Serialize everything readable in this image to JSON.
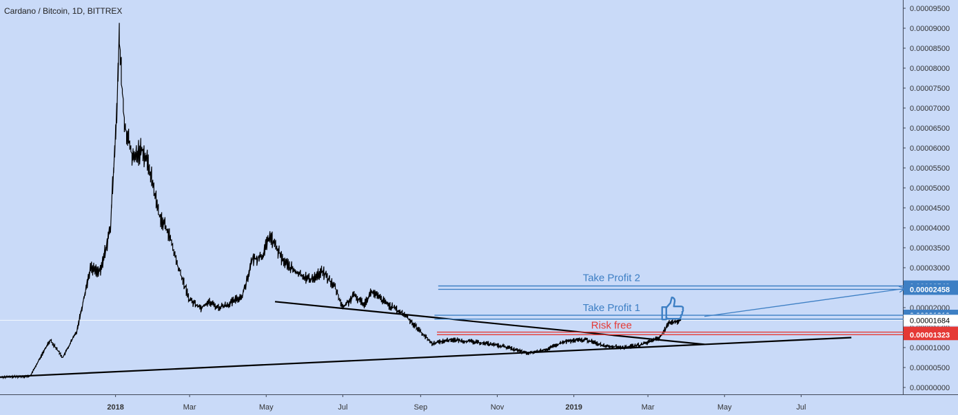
{
  "header": {
    "title": "Cardano / Bitcoin, 1D, BITTREX"
  },
  "chart_data": {
    "type": "candlestick",
    "symbol": "Cardano / Bitcoin",
    "interval": "1D",
    "exchange": "BITTREX",
    "x_ticks": [
      "2018",
      "Mar",
      "May",
      "Jul",
      "Sep",
      "Nov",
      "2019",
      "Mar",
      "May",
      "Jul"
    ],
    "y_ticks": [
      "0.00009500",
      "0.00009000",
      "0.00008500",
      "0.00008000",
      "0.00007500",
      "0.00007000",
      "0.00006500",
      "0.00006000",
      "0.00005500",
      "0.00005000",
      "0.00004500",
      "0.00004000",
      "0.00003500",
      "0.00003000",
      "0.00002500",
      "0.00002000",
      "0.00001500",
      "0.00001000",
      "0.00000500",
      "0.00000000"
    ],
    "ylim": [
      0.0,
      9.5e-05
    ],
    "price_series": {
      "x": [
        "2017-10-01",
        "2017-10-25",
        "2017-11-10",
        "2017-11-20",
        "2017-12-01",
        "2017-12-12",
        "2017-12-20",
        "2017-12-28",
        "2018-01-02",
        "2018-01-04",
        "2018-01-08",
        "2018-01-15",
        "2018-01-22",
        "2018-01-28",
        "2018-02-05",
        "2018-02-12",
        "2018-02-20",
        "2018-03-01",
        "2018-03-10",
        "2018-03-16",
        "2018-03-24",
        "2018-04-02",
        "2018-04-12",
        "2018-04-20",
        "2018-04-28",
        "2018-05-04",
        "2018-05-14",
        "2018-05-24",
        "2018-06-05",
        "2018-06-15",
        "2018-06-25",
        "2018-07-01",
        "2018-07-10",
        "2018-07-18",
        "2018-07-24",
        "2018-08-05",
        "2018-08-20",
        "2018-09-01",
        "2018-09-10",
        "2018-09-25",
        "2018-10-10",
        "2018-10-25",
        "2018-11-10",
        "2018-11-25",
        "2018-12-10",
        "2018-12-25",
        "2019-01-10",
        "2019-01-25",
        "2019-02-10",
        "2019-02-25",
        "2019-03-10",
        "2019-03-18",
        "2019-03-28"
      ],
      "close": [
        2.6e-06,
        2.8e-06,
        1.2e-05,
        7.5e-06,
        1.4e-05,
        3e-05,
        2.9e-05,
        4e-05,
        7e-05,
        8.7e-05,
        6.6e-05,
        5.7e-05,
        6e-05,
        5.5e-05,
        4.3e-05,
        3.9e-05,
        3e-05,
        2.2e-05,
        2e-05,
        2.15e-05,
        2e-05,
        2.1e-05,
        2.3e-05,
        3.2e-05,
        3.3e-05,
        3.8e-05,
        3.2e-05,
        2.9e-05,
        2.7e-05,
        2.9e-05,
        2.5e-05,
        2e-05,
        2.3e-05,
        2.1e-05,
        2.4e-05,
        2.1e-05,
        1.8e-05,
        1.4e-05,
        1.1e-05,
        1.2e-05,
        1.15e-05,
        1.1e-05,
        1e-05,
        8.5e-06,
        9.5e-06,
        1.15e-05,
        1.2e-05,
        1.05e-05,
        1e-05,
        1.08e-05,
        1.25e-05,
        1.6e-05,
        1.7e-05
      ]
    },
    "annotations": {
      "lines": [
        {
          "name": "upper-trendline",
          "x": [
            "2018-05-08",
            "2019-04-15"
          ],
          "y": [
            2.15e-05,
            1.08e-05
          ],
          "color": "#000000"
        },
        {
          "name": "lower-trendline",
          "x": [
            "2017-10-01",
            "2019-08-10"
          ],
          "y": [
            2.6e-06,
            1.25e-05
          ],
          "color": "#000000"
        },
        {
          "name": "tp2-upper",
          "x": [
            "2018-09-15",
            "2019-09-30"
          ],
          "y": [
            2.543e-05,
            2.543e-05
          ],
          "color": "#3d7fc4"
        },
        {
          "name": "tp2-lower",
          "x": [
            "2018-09-15",
            "2019-09-30"
          ],
          "y": [
            2.458e-05,
            2.458e-05
          ],
          "color": "#3d7fc4"
        },
        {
          "name": "tp1-upper",
          "x": [
            "2018-09-12",
            "2019-09-30"
          ],
          "y": [
            1.81e-05,
            1.81e-05
          ],
          "color": "#3d7fc4"
        },
        {
          "name": "tp1-lower",
          "x": [
            "2018-09-12",
            "2019-09-30"
          ],
          "y": [
            1.713e-05,
            1.713e-05
          ],
          "color": "#3d7fc4"
        },
        {
          "name": "risk-free-upper",
          "x": [
            "2018-09-14",
            "2019-09-30"
          ],
          "y": [
            1.386e-05,
            1.386e-05
          ],
          "color": "#e53935"
        },
        {
          "name": "risk-free-lower",
          "x": [
            "2018-09-14",
            "2019-09-30"
          ],
          "y": [
            1.323e-05,
            1.323e-05
          ],
          "color": "#e53935"
        }
      ],
      "arrow": {
        "x": [
          "2019-04-15",
          "2019-09-22"
        ],
        "y": [
          1.78e-05,
          2.48e-05
        ],
        "color": "#3d7fc4"
      },
      "labels": [
        {
          "name": "take-profit-2-label",
          "text": "Take Profit 2",
          "x": "2019-01-31",
          "y": 2.66e-05,
          "color": "#3d7fc4"
        },
        {
          "name": "take-profit-1-label",
          "text": "Take Profit 1",
          "x": "2019-01-31",
          "y": 1.91e-05,
          "color": "#3d7fc4"
        },
        {
          "name": "risk-free-label",
          "text": "Risk free",
          "x": "2019-01-31",
          "y": 1.47e-05,
          "color": "#e53935"
        }
      ],
      "thumbs_up": {
        "x": "2019-03-20",
        "y": 1.98e-05,
        "color": "#3d7fc4"
      }
    },
    "price_labels": [
      {
        "text": "0.00002543",
        "y": 2.543e-05,
        "bg": "#3d7fc4",
        "fg": "#ffffff"
      },
      {
        "text": "0.00002458",
        "y": 2.458e-05,
        "bg": "#3d7fc4",
        "fg": "#ffffff"
      },
      {
        "text": "0.00001810",
        "y": 1.81e-05,
        "bg": "#3d7fc4",
        "fg": "#ffffff"
      },
      {
        "text": "0.00001713",
        "y": 1.713e-05,
        "bg": "#3d7fc4",
        "fg": "#ffffff"
      },
      {
        "text": "0.00001684",
        "y": 1.684e-05,
        "bg": "#ffffff",
        "fg": "#000000"
      },
      {
        "text": "0.00001386",
        "y": 1.386e-05,
        "bg": "#e53935",
        "fg": "#ffffff"
      },
      {
        "text": "0.00001323",
        "y": 1.323e-05,
        "bg": "#e53935",
        "fg": "#ffffff"
      }
    ],
    "colors": {
      "background": "#c9daf8",
      "price": "#000000",
      "axis": "#3f4656",
      "blue": "#3d7fc4",
      "red": "#e53935"
    },
    "grid": false
  }
}
